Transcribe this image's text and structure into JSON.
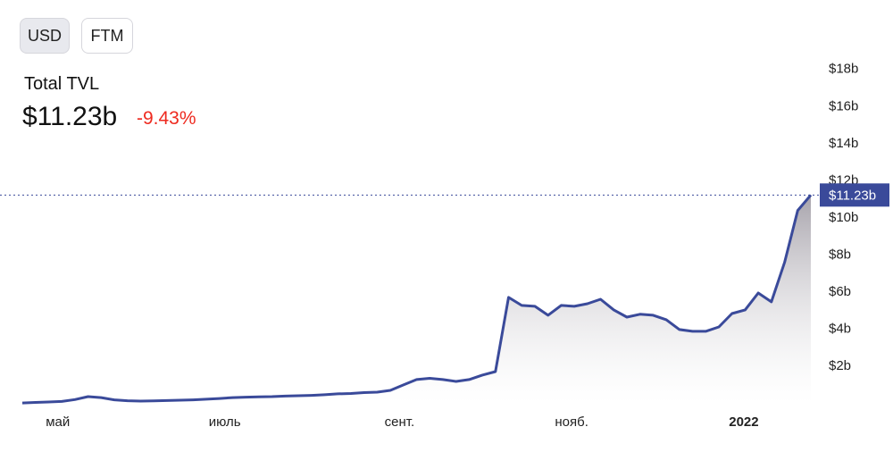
{
  "header": {
    "buttons": [
      "USD",
      "FTM"
    ],
    "label": "Total TVL",
    "change": "-9.43%"
  },
  "chart_data": {
    "type": "area",
    "series": [
      {
        "name": "Total TVL",
        "color": "#3a4a9a",
        "values": [
          0.02,
          0.05,
          0.07,
          0.1,
          0.2,
          0.36,
          0.31,
          0.19,
          0.14,
          0.12,
          0.13,
          0.15,
          0.17,
          0.19,
          0.22,
          0.26,
          0.31,
          0.33,
          0.35,
          0.36,
          0.39,
          0.41,
          0.43,
          0.46,
          0.51,
          0.53,
          0.58,
          0.6,
          0.7,
          0.99,
          1.28,
          1.35,
          1.28,
          1.18,
          1.28,
          1.52,
          1.71,
          5.71,
          5.28,
          5.23,
          4.75,
          5.28,
          5.23,
          5.37,
          5.61,
          5.04,
          4.65,
          4.8,
          4.75,
          4.51,
          3.98,
          3.88,
          3.88,
          4.12,
          4.84,
          5.04,
          5.95,
          5.47,
          7.6,
          10.4,
          11.23
        ]
      }
    ],
    "xlim": [
      0,
      60
    ],
    "xticks": [
      {
        "value": 2.7,
        "label": "май"
      },
      {
        "value": 15.4,
        "label": "июль"
      },
      {
        "value": 28.7,
        "label": "сент."
      },
      {
        "value": 41.8,
        "label": "нояб."
      },
      {
        "value": 54.9,
        "label": "2022"
      }
    ],
    "ylim": [
      0,
      19
    ],
    "yticks": [
      {
        "value": 2,
        "label": "$2b"
      },
      {
        "value": 4,
        "label": "$4b"
      },
      {
        "value": 6,
        "label": "$6b"
      },
      {
        "value": 8,
        "label": "$8b"
      },
      {
        "value": 10,
        "label": "$10b"
      },
      {
        "value": 12,
        "label": "$12b"
      },
      {
        "value": 14,
        "label": "$14b"
      },
      {
        "value": 16,
        "label": "$16b"
      },
      {
        "value": 18,
        "label": "$18b"
      }
    ],
    "current": {
      "value": 11.23,
      "label": "$11.23b"
    }
  }
}
